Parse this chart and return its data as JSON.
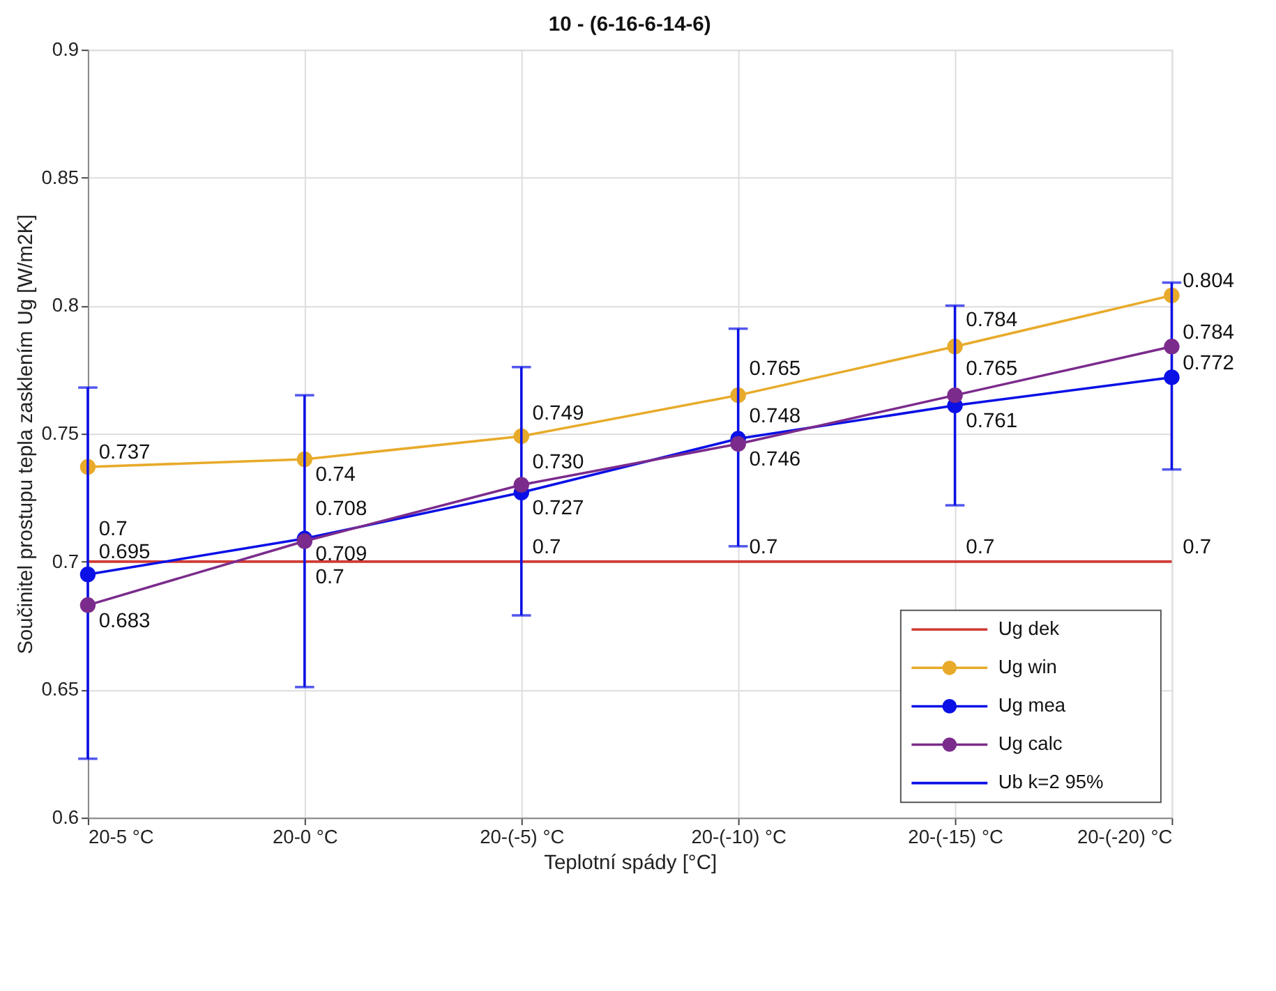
{
  "chart_data": {
    "type": "line",
    "title": "10 - (6-16-6-14-6)",
    "xlabel": "Teplotní spády [°C]",
    "ylabel": "Součinitel prostupu tepla zasklením Ug [W/m2K]",
    "categories": [
      "20-5 °C",
      "20-0 °C",
      "20-(-5) °C",
      "20-(-10) °C",
      "20-(-15) °C",
      "20-(-20) °C"
    ],
    "series": [
      {
        "name": "Ug dek",
        "color": "#d03a35",
        "marker": "none",
        "values": [
          0.7,
          0.7,
          0.7,
          0.7,
          0.7,
          0.7
        ],
        "value_labels": [
          "0.7",
          "0.7",
          "0.7",
          "0.7",
          "0.7",
          "0.7"
        ]
      },
      {
        "name": "Ug win",
        "color": "#e8aa2a",
        "marker": "circle",
        "values": [
          0.737,
          0.74,
          0.749,
          0.765,
          0.784,
          0.804
        ],
        "value_labels": [
          "0.737",
          "0.74",
          "0.749",
          "0.765",
          "0.784",
          "0.804"
        ]
      },
      {
        "name": "Ug mea",
        "color": "#0a10e6",
        "marker": "circle",
        "values": [
          0.695,
          0.709,
          0.727,
          0.748,
          0.761,
          0.772
        ],
        "value_labels": [
          "0.695",
          "0.709",
          "0.727",
          "0.748",
          "0.761",
          "0.772"
        ],
        "errors": [
          [
            0.623,
            0.768
          ],
          [
            0.651,
            0.765
          ],
          [
            0.679,
            0.776
          ],
          [
            0.706,
            0.791
          ],
          [
            0.722,
            0.8
          ],
          [
            0.736,
            0.809
          ]
        ]
      },
      {
        "name": "Ug calc",
        "color": "#7b2b8c",
        "marker": "circle",
        "values": [
          0.683,
          0.708,
          0.73,
          0.746,
          0.765,
          0.784
        ],
        "value_labels": [
          "0.683",
          "0.708",
          "0.730",
          "0.746",
          "0.765",
          "0.784"
        ]
      }
    ],
    "annotations": [
      "Ub k=2 95%"
    ],
    "ylim": [
      0.6,
      0.9
    ],
    "yticks": [
      0.6,
      0.65,
      0.7,
      0.75,
      0.8,
      0.85,
      0.9
    ],
    "grid": true,
    "legend": "bottom right"
  }
}
